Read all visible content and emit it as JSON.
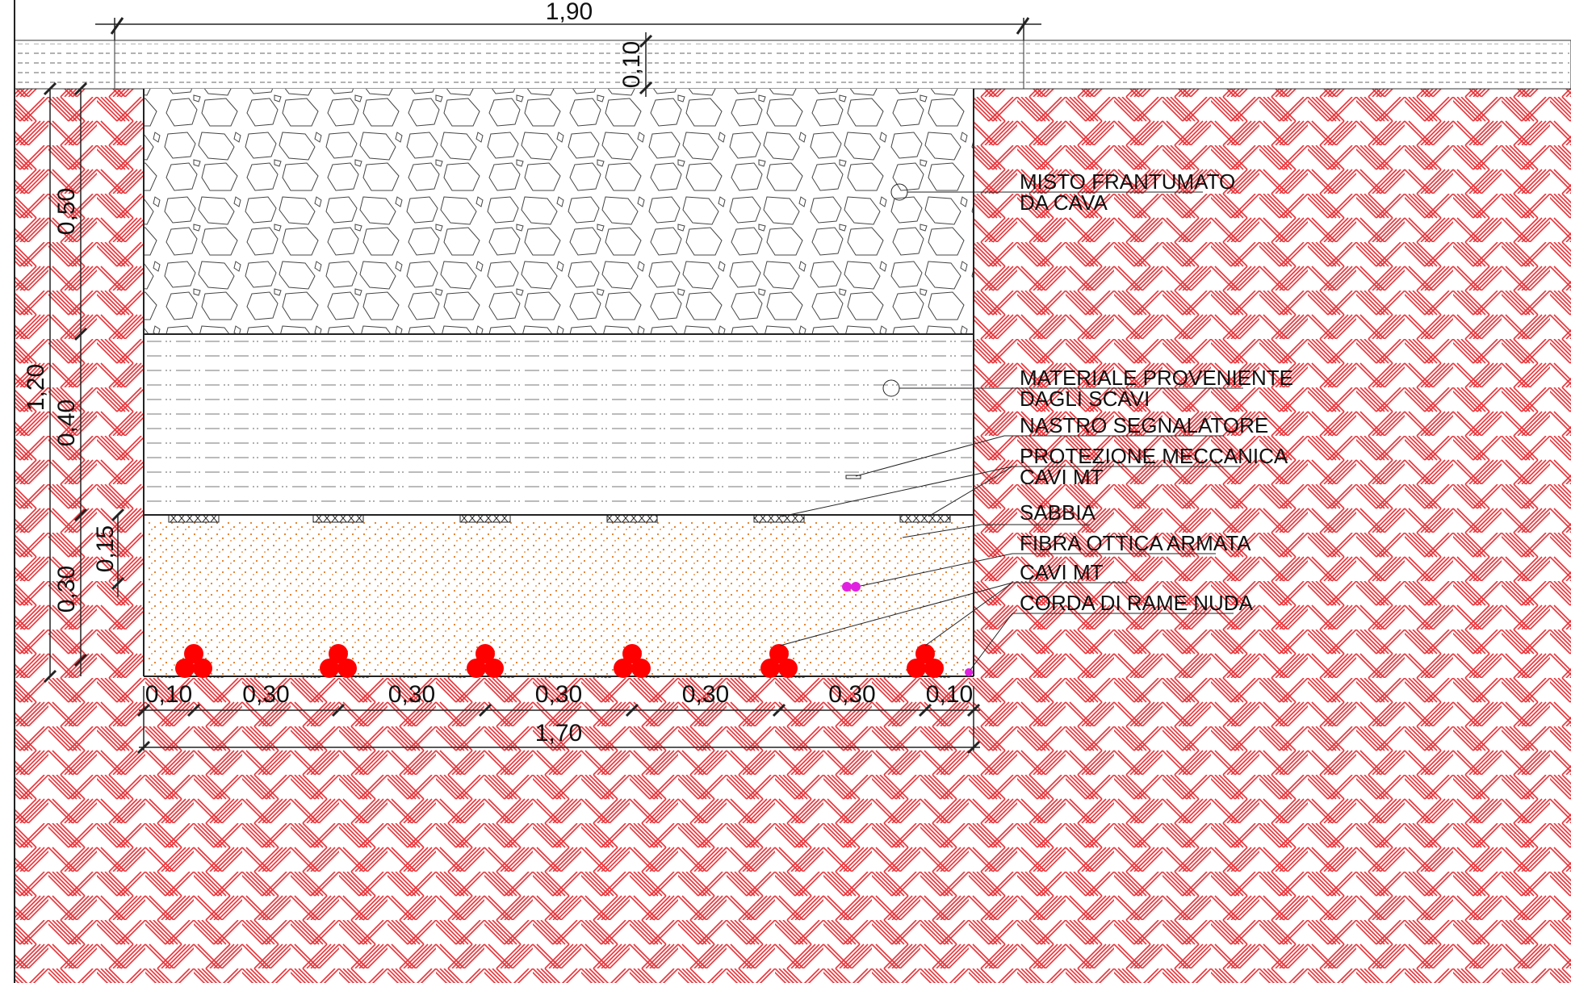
{
  "dimensions": {
    "top_total": "1,90",
    "pavement_thickness": "0,10",
    "total_depth": "1,20",
    "layer_fill": "0,50",
    "layer_excavated": "0,40",
    "layer_sand": "0,30",
    "cable_depth": "0,15",
    "bottom_segments": [
      "0,10",
      "0,30",
      "0,30",
      "0,30",
      "0,30",
      "0,30",
      "0,10"
    ],
    "bottom_total": "1,70"
  },
  "labels": {
    "misto_line1": "MISTO FRANTUMATO",
    "misto_line2": "DA CAVA",
    "materiale_line1": "MATERIALE PROVENIENTE",
    "materiale_line2": "DAGLI SCAVI",
    "nastro": "NASTRO SEGNALATORE",
    "protezione": "PROTEZIONE MECCANICA",
    "cavi_mt_upper": "CAVI MT",
    "sabbia": "SABBIA",
    "fibra": "FIBRA OTTICA ARMATA",
    "cavi_mt_lower": "CAVI MT",
    "corda": "CORDA DI RAME NUDA"
  },
  "colors": {
    "soil_hatch": "#e8343a",
    "sand_dots": "#e07a22",
    "cable": "#ff0000",
    "fiber": "#e020e0",
    "line": "#222222"
  }
}
